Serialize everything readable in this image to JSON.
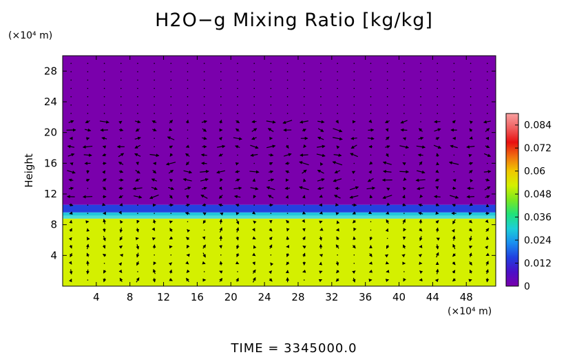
{
  "chart_data": {
    "type": "heatmap",
    "title": "H2O−g Mixing Ratio [kg/kg]",
    "xlabel": "",
    "ylabel": "Height",
    "x_unit": "(×10⁴ m)",
    "y_unit": "(×10⁴ m)",
    "xlim": [
      0,
      51.5
    ],
    "ylim": [
      0,
      30
    ],
    "x_ticks": [
      4,
      8,
      12,
      16,
      20,
      24,
      28,
      32,
      36,
      40,
      44,
      48
    ],
    "y_ticks": [
      4,
      8,
      12,
      16,
      20,
      24,
      28
    ],
    "fields": [
      {
        "from_height": 0,
        "to_height": 8.8,
        "value": 0.058,
        "color": "#d4f000"
      },
      {
        "from_height": 8.8,
        "to_height": 9.6,
        "value": 0.03,
        "color": "#22c6dc"
      },
      {
        "from_height": 9.6,
        "to_height": 10.6,
        "value": 0.01,
        "color": "#2440e0"
      },
      {
        "from_height": 10.6,
        "to_height": 30,
        "value": 0.0,
        "color": "#7a00ac"
      }
    ],
    "colorbar": {
      "range": [
        0,
        0.09
      ],
      "ticks": [
        "0",
        "0.012",
        "0.024",
        "0.036",
        "0.048",
        "0.06",
        "0.072",
        "0.084"
      ],
      "tick_values": [
        0,
        0.012,
        0.024,
        0.036,
        0.048,
        0.06,
        0.072,
        0.084
      ],
      "colors": [
        "#7a00ac",
        "#4a10c8",
        "#2040e0",
        "#1a8ef0",
        "#1ccfd8",
        "#20e27a",
        "#7ae820",
        "#d4f000",
        "#f0c800",
        "#f07010",
        "#e81010",
        "#f06060",
        "#f8a0a0"
      ]
    },
    "vectors": "wind vector field overlay"
  },
  "footer": {
    "time_label": "TIME  =  3345000.0"
  }
}
